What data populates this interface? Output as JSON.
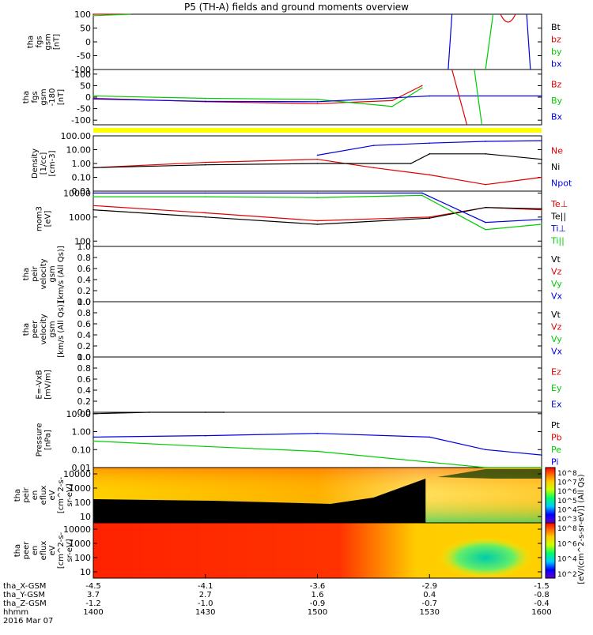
{
  "title": "P5 (TH-A) fields and ground moments overview",
  "date_label": "2016 Mar 07",
  "colors": {
    "black": "#000000",
    "red": "#e00000",
    "green": "#00cc00",
    "blue": "#0000e0",
    "yellow": "#ffff00",
    "flux_fill": "#000000"
  },
  "panels": [
    {
      "id": "fgs_gsm",
      "ylabel": [
        "tha",
        "fgs",
        "gsm",
        "[nT]"
      ],
      "ticks": [
        "100",
        "50",
        "0",
        "-50",
        "-100"
      ],
      "legend": [
        {
          "label": "Bt",
          "color": "black"
        },
        {
          "label": "bz",
          "color": "red"
        },
        {
          "label": "by",
          "color": "green"
        },
        {
          "label": "bx",
          "color": "blue"
        }
      ]
    },
    {
      "id": "fgs_gsm_180",
      "ylabel": [
        "tha",
        "fgs",
        "gsm",
        "-180",
        "[nT]"
      ],
      "ticks": [
        "100",
        "50",
        "0",
        "-50",
        "-100"
      ],
      "legend": [
        {
          "label": "Bz",
          "color": "red"
        },
        {
          "label": "By",
          "color": "green"
        },
        {
          "label": "Bx",
          "color": "blue"
        }
      ]
    },
    {
      "id": "density",
      "ylabel": [
        "Density",
        "[1/cc]",
        "[cm-3]"
      ],
      "ticks": [
        "100.00",
        "10.00",
        "1.00",
        "0.10",
        "0.01"
      ],
      "legend": [
        {
          "label": "Ne",
          "color": "red"
        },
        {
          "label": "Ni",
          "color": "black"
        },
        {
          "label": "Npot",
          "color": "blue"
        }
      ]
    },
    {
      "id": "temperature",
      "ylabel": [
        "mom3",
        "[eV]"
      ],
      "ticks": [
        "10000",
        "1000",
        "100"
      ],
      "legend": [
        {
          "label": "Te⊥",
          "color": "red"
        },
        {
          "label": "Te||",
          "color": "black"
        },
        {
          "label": "Ti⊥",
          "color": "blue"
        },
        {
          "label": "Ti||",
          "color": "green"
        }
      ]
    },
    {
      "id": "peir_velocity",
      "ylabel": [
        "tha",
        "peir",
        "velocity",
        "gsm",
        "[km/s (All Qs)]"
      ],
      "ticks": [
        "1.0",
        "0.8",
        "0.6",
        "0.4",
        "0.2",
        "0.0"
      ],
      "legend": [
        {
          "label": "Vt",
          "color": "black"
        },
        {
          "label": "Vz",
          "color": "red"
        },
        {
          "label": "Vy",
          "color": "green"
        },
        {
          "label": "Vx",
          "color": "blue"
        }
      ]
    },
    {
      "id": "peer_velocity",
      "ylabel": [
        "tha",
        "peer",
        "velocity",
        "gsm",
        "[km/s (All Qs)]"
      ],
      "ticks": [
        "1.0",
        "0.8",
        "0.6",
        "0.4",
        "0.2",
        "0.0"
      ],
      "legend": [
        {
          "label": "Vt",
          "color": "black"
        },
        {
          "label": "Vz",
          "color": "red"
        },
        {
          "label": "Vy",
          "color": "green"
        },
        {
          "label": "Vx",
          "color": "blue"
        }
      ]
    },
    {
      "id": "e_field",
      "ylabel": [
        "E=-VxB",
        "[mV/m]"
      ],
      "ticks": [
        "1.0",
        "0.8",
        "0.6",
        "0.4",
        "0.2",
        "0.0"
      ],
      "legend": [
        {
          "label": "Ez",
          "color": "red"
        },
        {
          "label": "Ey",
          "color": "green"
        },
        {
          "label": "Ex",
          "color": "blue"
        }
      ]
    },
    {
      "id": "pressure",
      "ylabel": [
        "Pressure",
        "[nPa]"
      ],
      "ticks": [
        "10.00",
        "1.00",
        "0.10",
        "0.01"
      ],
      "legend": [
        {
          "label": "Pt",
          "color": "black"
        },
        {
          "label": "Pb",
          "color": "red"
        },
        {
          "label": "Pe",
          "color": "green"
        },
        {
          "label": "Pi",
          "color": "blue"
        }
      ]
    },
    {
      "id": "peir_spec",
      "ylabel": [
        "tha",
        "peir",
        "en",
        "eflux",
        "eV",
        "[cm^2-s-",
        "sr-eV]"
      ],
      "ticks": [
        "10000",
        "1000",
        "100",
        "10"
      ],
      "colorbar_ticks": [
        "10^8",
        "10^7",
        "10^6",
        "10^5",
        "10^4",
        "10^3"
      ]
    },
    {
      "id": "peer_spec",
      "ylabel": [
        "tha",
        "peer",
        "en",
        "eflux",
        "eV",
        "[cm^2-s-",
        "sr-eV]"
      ],
      "ticks": [
        "10000",
        "1000",
        "100",
        "10"
      ],
      "colorbar_ticks": [
        "10^8",
        "10^6",
        "10^4",
        "10^2"
      ]
    }
  ],
  "colorbar_label": "[eV/(cm^2-s-sr-eV)] (All Qs)",
  "x_axis": {
    "rows": [
      {
        "label": "tha_X-GSM",
        "values": [
          "-4.5",
          "-4.1",
          "-3.6",
          "-2.9",
          "-1.5"
        ]
      },
      {
        "label": "tha_Y-GSM",
        "values": [
          "3.7",
          "2.7",
          "1.6",
          "0.4",
          "-0.8"
        ]
      },
      {
        "label": "tha_Z-GSM",
        "values": [
          "-1.2",
          "-1.0",
          "-0.9",
          "-0.7",
          "-0.4"
        ]
      },
      {
        "label": "hhmm",
        "values": [
          "1400",
          "1430",
          "1500",
          "1530",
          "1600"
        ]
      }
    ]
  },
  "chart_data": {
    "type": "line",
    "title": "P5 (TH-A) fields and ground moments overview",
    "x_label": "hhmm",
    "x_range": [
      "1400",
      "1600"
    ],
    "x_ticks": [
      "1400",
      "1430",
      "1500",
      "1530",
      "1600"
    ],
    "series": [
      {
        "name": "bz",
        "x": [
          "1400",
          "1405",
          "1410"
        ],
        "values": [
          100,
          100,
          100
        ]
      },
      {
        "name": "by",
        "x": [
          "1400",
          "1410"
        ],
        "values": [
          95,
          100
        ]
      },
      {
        "name": "Bz",
        "x": [
          "1400",
          "1430",
          "1500",
          "1520",
          "1528"
        ],
        "values": [
          -5,
          -20,
          -28,
          -15,
          50
        ]
      },
      {
        "name": "By",
        "x": [
          "1400",
          "1430",
          "1500",
          "1520",
          "1528"
        ],
        "values": [
          5,
          -5,
          -10,
          -40,
          40
        ]
      },
      {
        "name": "Bx",
        "x": [
          "1400",
          "1430",
          "1500",
          "1530",
          "1600"
        ],
        "values": [
          -8,
          -18,
          -20,
          5,
          5
        ]
      },
      {
        "name": "Ne",
        "x": [
          "1400",
          "1430",
          "1500",
          "1515",
          "1530",
          "1545",
          "1600"
        ],
        "values": [
          0.5,
          1.2,
          2.0,
          0.5,
          0.15,
          0.03,
          0.1
        ]
      },
      {
        "name": "Ni",
        "x": [
          "1400",
          "1430",
          "1500",
          "1525",
          "1530",
          "1545",
          "1600"
        ],
        "values": [
          0.5,
          0.8,
          1.0,
          1.0,
          5,
          5,
          2
        ]
      },
      {
        "name": "Npot",
        "x": [
          "1500",
          "1515",
          "1530",
          "1545",
          "1600"
        ],
        "values": [
          4,
          20,
          30,
          40,
          45
        ]
      },
      {
        "name": "Te⊥",
        "x": [
          "1400",
          "1430",
          "1500",
          "1530",
          "1545",
          "1600"
        ],
        "values": [
          3000,
          1500,
          700,
          1000,
          2500,
          2000
        ]
      },
      {
        "name": "Te||",
        "x": [
          "1400",
          "1430",
          "1500",
          "1530",
          "1545",
          "1600"
        ],
        "values": [
          2000,
          1000,
          500,
          900,
          2500,
          2200
        ]
      },
      {
        "name": "Ti⊥",
        "x": [
          "1400",
          "1430",
          "1500",
          "1528",
          "1545",
          "1600"
        ],
        "values": [
          10000,
          10000,
          10000,
          10000,
          600,
          800
        ]
      },
      {
        "name": "Ti||",
        "x": [
          "1400",
          "1430",
          "1500",
          "1528",
          "1545",
          "1600"
        ],
        "values": [
          7000,
          7000,
          6500,
          8000,
          300,
          500
        ]
      },
      {
        "name": "Pt",
        "x": [
          "1400",
          "1415",
          "1430",
          "1435"
        ],
        "values": [
          10,
          25,
          60,
          100
        ]
      },
      {
        "name": "Pe",
        "x": [
          "1400",
          "1430",
          "1500",
          "1530",
          "1545",
          "1600"
        ],
        "values": [
          0.3,
          0.15,
          0.08,
          0.02,
          0.01,
          0.01
        ]
      },
      {
        "name": "Pi",
        "x": [
          "1400",
          "1430",
          "1500",
          "1530",
          "1545",
          "1600"
        ],
        "values": [
          0.5,
          0.6,
          0.8,
          0.5,
          0.1,
          0.05
        ]
      }
    ]
  }
}
